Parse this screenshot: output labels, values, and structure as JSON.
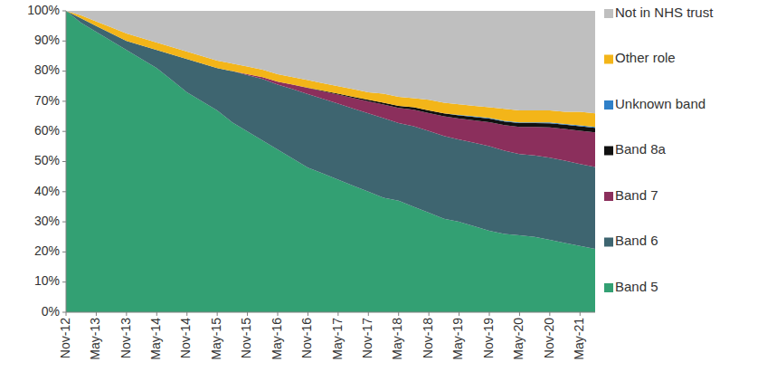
{
  "chart_data": {
    "type": "area",
    "stacked": true,
    "legend": "right",
    "grid": false,
    "categories": [
      "Nov-12",
      null,
      "May-13",
      null,
      "Nov-13",
      null,
      "May-14",
      null,
      "Nov-14",
      null,
      "May-15",
      null,
      "Nov-15",
      null,
      "May-16",
      null,
      "Nov-16",
      null,
      "May-17",
      null,
      "Nov-17",
      null,
      "May-18",
      null,
      "Nov-18",
      null,
      "May-19",
      null,
      "Nov-19",
      null,
      "May-20",
      null,
      "Nov-20",
      null,
      "May-21",
      null
    ],
    "ylim": [
      0,
      100
    ],
    "yticks": [
      {
        "value": 0,
        "label": "0%"
      },
      {
        "value": 10,
        "label": "10%"
      },
      {
        "value": 20,
        "label": "20%"
      },
      {
        "value": 30,
        "label": "30%"
      },
      {
        "value": 40,
        "label": "40%"
      },
      {
        "value": 50,
        "label": "50%"
      },
      {
        "value": 60,
        "label": "60%"
      },
      {
        "value": 70,
        "label": "70%"
      },
      {
        "value": 80,
        "label": "80%"
      },
      {
        "value": 90,
        "label": "90%"
      },
      {
        "value": 100,
        "label": "100%"
      }
    ],
    "series": [
      {
        "name": "Band 5",
        "color": "#33a073",
        "values": [
          100,
          96,
          93,
          90,
          87,
          84,
          81,
          77,
          73,
          70,
          67,
          63,
          60,
          57,
          54,
          51,
          48,
          46,
          44,
          42,
          40,
          38,
          37,
          35,
          33,
          31,
          30,
          28.5,
          27,
          26,
          25.5,
          25,
          24,
          23,
          22,
          21
        ]
      },
      {
        "name": "Band 6",
        "color": "#3e6570",
        "values": [
          0,
          1.5,
          2,
          2.5,
          3,
          4.5,
          6,
          8.5,
          11,
          12.5,
          14,
          17,
          18.7,
          20.4,
          21.5,
          23,
          24.4,
          24.8,
          25.2,
          25.6,
          26,
          26.4,
          25.8,
          26.7,
          27.1,
          27.5,
          27.3,
          27.7,
          28.1,
          27.6,
          27,
          27,
          27.3,
          27.3,
          27.2,
          27.2
        ]
      },
      {
        "name": "Band 7",
        "color": "#8b2f5c",
        "values": [
          0,
          0,
          0,
          0,
          0,
          0,
          0,
          0,
          0,
          0,
          0,
          0,
          0.3,
          0.6,
          1,
          1.5,
          2,
          2.5,
          3,
          3.5,
          4,
          4.5,
          5,
          5.5,
          6,
          6.5,
          7,
          7.5,
          8,
          8.5,
          9,
          9.5,
          10,
          10.5,
          11,
          11.5
        ]
      },
      {
        "name": "Band 8a",
        "color": "#111111",
        "values": [
          0,
          0,
          0,
          0,
          0,
          0,
          0,
          0,
          0,
          0,
          0,
          0,
          0,
          0,
          0,
          0,
          0.1,
          0.2,
          0.3,
          0.4,
          0.5,
          0.6,
          0.7,
          0.8,
          0.9,
          1,
          1,
          1.1,
          1.2,
          1.2,
          1.3,
          1.3,
          1.4,
          1.4,
          1.5,
          1.5
        ]
      },
      {
        "name": "Unknown band",
        "color": "#2f80c8",
        "values": [
          0,
          0,
          0,
          0,
          0,
          0,
          0,
          0,
          0,
          0,
          0,
          0,
          0,
          0,
          0,
          0,
          0,
          0,
          0,
          0,
          0,
          0,
          0,
          0,
          0,
          0,
          0.2,
          0.2,
          0.2,
          0.2,
          0.2,
          0.2,
          0.3,
          0.3,
          0.3,
          0.3
        ]
      },
      {
        "name": "Other role",
        "color": "#f3b519",
        "values": [
          0,
          1,
          1.5,
          2,
          2.5,
          2.5,
          2.5,
          2.5,
          2.5,
          2.5,
          2.5,
          2.5,
          2.5,
          2.5,
          2.5,
          2.5,
          2.5,
          2.5,
          2.5,
          2.5,
          2.5,
          3,
          3,
          3,
          3.5,
          3.5,
          3.5,
          3.5,
          3.5,
          4,
          4,
          4,
          4,
          4,
          4.5,
          4.5
        ]
      },
      {
        "name": "Not in NHS trust",
        "color": "#bfbfbf",
        "values": [
          0,
          1.5,
          3.5,
          5.5,
          7.5,
          9,
          10.5,
          12,
          13.5,
          15,
          16.5,
          17.5,
          18.5,
          19.5,
          21,
          22,
          23,
          24,
          25,
          26,
          27,
          27.5,
          28.5,
          29,
          29.5,
          30.5,
          31,
          31.5,
          32,
          32.5,
          33,
          33,
          33,
          33.5,
          33.5,
          34
        ]
      }
    ]
  }
}
